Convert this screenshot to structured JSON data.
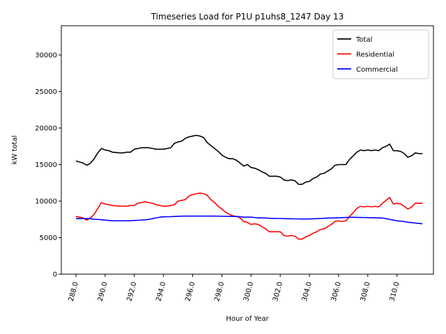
{
  "chart_data": {
    "type": "line",
    "title": "Timeseries Load for P1U p1uhs8_1247  Day 13",
    "xlabel": "Hour of Year",
    "ylabel": "kW total",
    "xlim": [
      287.0,
      312.5
    ],
    "ylim": [
      0,
      34000
    ],
    "xticks": [
      288,
      290,
      292,
      294,
      296,
      298,
      300,
      302,
      304,
      306,
      308,
      310
    ],
    "xtick_labels": [
      "288.0",
      "290.0",
      "292.0",
      "294.0",
      "296.0",
      "298.0",
      "300.0",
      "302.0",
      "304.0",
      "306.0",
      "308.0",
      "310.0"
    ],
    "yticks": [
      0,
      5000,
      10000,
      15000,
      20000,
      25000,
      30000
    ],
    "ytick_labels": [
      "0",
      "5000",
      "10000",
      "15000",
      "20000",
      "25000",
      "30000"
    ],
    "legend_position": "top-right",
    "x": [
      288.0,
      288.5,
      288.75,
      289.0,
      289.25,
      289.5,
      289.75,
      290.0,
      290.25,
      290.5,
      291.0,
      291.25,
      291.5,
      291.75,
      292.0,
      292.25,
      292.5,
      292.75,
      293.0,
      293.25,
      293.5,
      293.75,
      294.0,
      294.25,
      294.5,
      294.75,
      295.0,
      295.25,
      295.5,
      295.75,
      296.0,
      296.25,
      296.5,
      296.75,
      297.0,
      297.25,
      297.5,
      297.75,
      298.0,
      298.25,
      298.5,
      298.75,
      299.0,
      299.25,
      299.5,
      299.75,
      300.0,
      300.25,
      300.5,
      300.75,
      301.0,
      301.25,
      301.5,
      301.75,
      302.0,
      302.25,
      302.5,
      302.75,
      303.0,
      303.25,
      303.5,
      303.75,
      304.0,
      304.25,
      304.5,
      304.75,
      305.0,
      305.25,
      305.5,
      305.75,
      306.0,
      306.25,
      306.5,
      306.75,
      307.0,
      307.25,
      307.5,
      307.75,
      308.0,
      308.25,
      308.5,
      308.75,
      309.0,
      309.25,
      309.5,
      309.75,
      310.0,
      310.25,
      310.5,
      310.75,
      311.0,
      311.25,
      311.5,
      311.75
    ],
    "series": [
      {
        "name": "Total",
        "color": "#000000",
        "values": [
          15500,
          15200,
          14900,
          15200,
          15800,
          16600,
          17200,
          17000,
          16900,
          16700,
          16600,
          16600,
          16700,
          16700,
          17100,
          17200,
          17300,
          17300,
          17300,
          17200,
          17100,
          17100,
          17100,
          17200,
          17300,
          17900,
          18100,
          18200,
          18600,
          18800,
          18900,
          19000,
          18900,
          18700,
          18000,
          17600,
          17200,
          16800,
          16300,
          16000,
          15800,
          15800,
          15600,
          15200,
          14800,
          15000,
          14600,
          14500,
          14300,
          14000,
          13800,
          13400,
          13400,
          13400,
          13300,
          12900,
          12800,
          12900,
          12800,
          12300,
          12300,
          12600,
          12700,
          13100,
          13300,
          13700,
          13800,
          14100,
          14400,
          14900,
          15000,
          15000,
          15000,
          15700,
          16200,
          16700,
          17000,
          16900,
          17000,
          16900,
          17000,
          16900,
          17300,
          17500,
          17800,
          16900,
          16900,
          16800,
          16500,
          16000,
          16200,
          16600,
          16500,
          16500
        ]
      },
      {
        "name": "Residential",
        "color": "#ff0000",
        "values": [
          7900,
          7700,
          7400,
          7700,
          8200,
          9000,
          9800,
          9600,
          9500,
          9400,
          9300,
          9300,
          9300,
          9400,
          9400,
          9700,
          9800,
          9900,
          9800,
          9700,
          9500,
          9400,
          9300,
          9300,
          9400,
          9500,
          10000,
          10100,
          10200,
          10700,
          10900,
          11000,
          11100,
          11000,
          10800,
          10200,
          9800,
          9300,
          8900,
          8500,
          8200,
          8000,
          7900,
          7700,
          7200,
          7100,
          6800,
          6900,
          6800,
          6500,
          6200,
          5800,
          5800,
          5800,
          5800,
          5300,
          5200,
          5300,
          5200,
          4800,
          4800,
          5100,
          5300,
          5600,
          5800,
          6100,
          6200,
          6500,
          6800,
          7200,
          7300,
          7200,
          7300,
          7900,
          8400,
          9000,
          9300,
          9200,
          9300,
          9200,
          9300,
          9200,
          9700,
          10100,
          10500,
          9600,
          9700,
          9600,
          9300,
          8900,
          9200,
          9700,
          9700,
          9700
        ]
      },
      {
        "name": "Commercial",
        "color": "#0000ff",
        "values": [
          7600,
          7600,
          7600,
          7600,
          7500,
          7500,
          7450,
          7400,
          7350,
          7300,
          7300,
          7300,
          7300,
          7320,
          7350,
          7380,
          7400,
          7450,
          7500,
          7600,
          7700,
          7800,
          7850,
          7850,
          7870,
          7900,
          7920,
          7940,
          7950,
          7950,
          7950,
          7950,
          7950,
          7950,
          7950,
          7950,
          7950,
          7940,
          7930,
          7920,
          7910,
          7900,
          7900,
          7850,
          7800,
          7800,
          7800,
          7750,
          7700,
          7700,
          7680,
          7650,
          7640,
          7630,
          7620,
          7600,
          7590,
          7580,
          7570,
          7560,
          7550,
          7550,
          7550,
          7580,
          7600,
          7620,
          7650,
          7670,
          7680,
          7700,
          7720,
          7740,
          7760,
          7780,
          7780,
          7770,
          7760,
          7750,
          7740,
          7720,
          7710,
          7700,
          7680,
          7600,
          7500,
          7400,
          7300,
          7250,
          7200,
          7100,
          7050,
          7000,
          6950,
          6900
        ]
      }
    ]
  }
}
